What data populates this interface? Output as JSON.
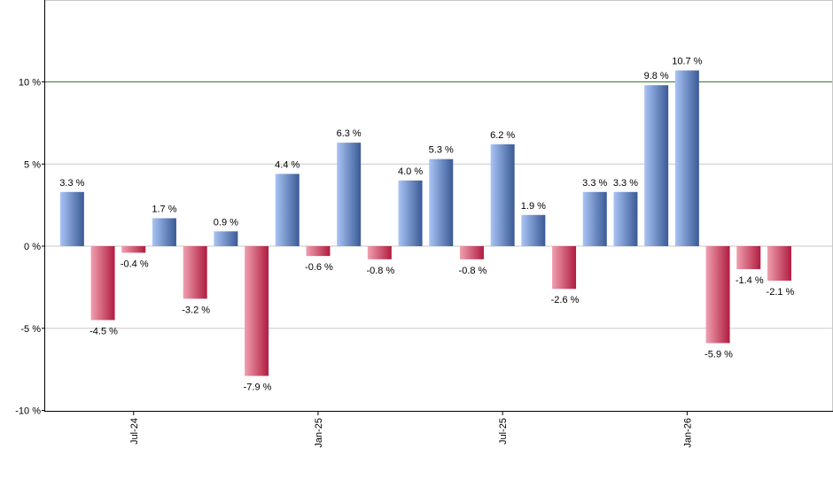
{
  "chart_data": {
    "type": "bar",
    "title": "",
    "xlabel": "",
    "ylabel": "",
    "ylim": [
      -10,
      10
    ],
    "unit": "%",
    "values": [
      3.3,
      -4.5,
      -0.4,
      1.7,
      -3.2,
      0.9,
      -7.9,
      4.4,
      -0.6,
      6.3,
      -0.8,
      4.0,
      5.3,
      -0.8,
      6.2,
      1.9,
      -2.6,
      3.3,
      3.3,
      9.8,
      10.7,
      -5.9,
      -1.4,
      -2.1
    ],
    "data_labels": [
      "3.3 %",
      "-4.5 %",
      "-0.4 %",
      "1.7 %",
      "-3.2 %",
      "0.9 %",
      "-7.9 %",
      "4.4 %",
      "-0.6 %",
      "6.3 %",
      "-0.8 %",
      "4.0 %",
      "5.3 %",
      "-0.8 %",
      "6.2 %",
      "1.9 %",
      "-2.6 %",
      "3.3 %",
      "3.3 %",
      "9.8 %",
      "10.7 %",
      "-5.9 %",
      "-1.4 %",
      "-2.1 %"
    ],
    "y_ticks": [
      {
        "value": 10,
        "label": "10 %"
      },
      {
        "value": 5,
        "label": "5 %"
      },
      {
        "value": 0,
        "label": "0 %"
      },
      {
        "value": -5,
        "label": "-5 %"
      },
      {
        "value": -10,
        "label": "-10 %"
      }
    ],
    "x_ticks": [
      {
        "index": 2,
        "label": "Jul-24"
      },
      {
        "index": 8,
        "label": "Jan-25"
      },
      {
        "index": 14,
        "label": "Jul-25"
      },
      {
        "index": 20,
        "label": "Jan-26"
      }
    ],
    "reference_line": {
      "value": 10,
      "color": "#2e7d32"
    },
    "grid": true,
    "colors": {
      "positive_light": "#a9c4f5",
      "positive_dark": "#3a5a96",
      "negative_light": "#f0a0b0",
      "negative_dark": "#b01c40",
      "grid": "#c8c8c8",
      "axis": "#000000"
    }
  }
}
